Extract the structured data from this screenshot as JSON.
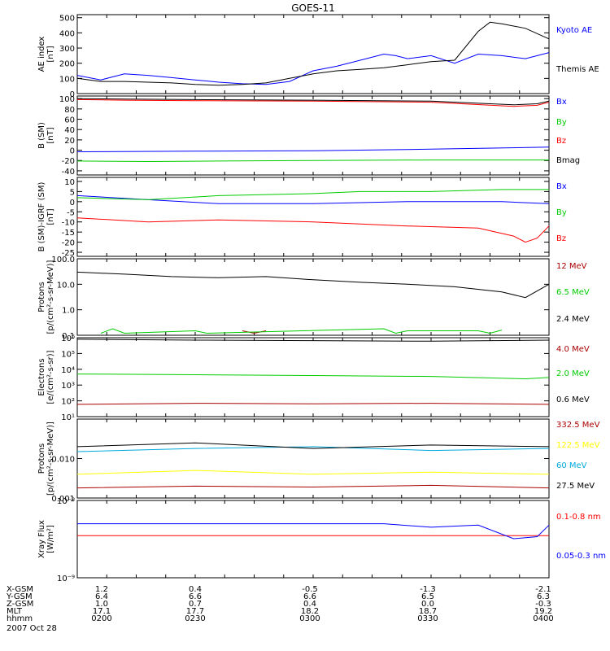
{
  "title": "GOES-11",
  "date_label": "2007 Oct 28",
  "chart_data": [
    {
      "type": "line",
      "ylabel": [
        "AE index",
        "[nT]"
      ],
      "ylim": [
        0,
        520
      ],
      "yscale": "linear",
      "yticks": [
        {
          "v": 500,
          "label": "500"
        },
        {
          "v": 400,
          "label": "400"
        },
        {
          "v": 300,
          "label": "300"
        },
        {
          "v": 200,
          "label": "200"
        },
        {
          "v": 100,
          "label": "100"
        },
        {
          "v": 0,
          "label": "0"
        }
      ],
      "series": [
        {
          "name": "Kyoto AE",
          "color": "#0000ff",
          "x": [
            0,
            0.1,
            0.2,
            0.3,
            0.4,
            0.5,
            0.6,
            0.7,
            0.8,
            0.9,
            1.0,
            1.1,
            1.2,
            1.3,
            1.35,
            1.4,
            1.5,
            1.6,
            1.7,
            1.8,
            1.9,
            2.0
          ],
          "y": [
            120,
            90,
            130,
            120,
            105,
            90,
            75,
            65,
            60,
            80,
            150,
            180,
            220,
            260,
            250,
            230,
            250,
            200,
            260,
            250,
            230,
            270
          ]
        },
        {
          "name": "Themis AE",
          "color": "#000000",
          "x": [
            0,
            0.1,
            0.2,
            0.3,
            0.4,
            0.5,
            0.6,
            0.7,
            0.8,
            0.9,
            1.0,
            1.1,
            1.2,
            1.3,
            1.4,
            1.5,
            1.6,
            1.7,
            1.75,
            1.8,
            1.9,
            2.0
          ],
          "y": [
            100,
            80,
            80,
            75,
            70,
            60,
            55,
            60,
            70,
            100,
            130,
            150,
            160,
            170,
            190,
            210,
            220,
            410,
            470,
            460,
            430,
            360
          ]
        }
      ]
    },
    {
      "type": "line",
      "ylabel": [
        "B (SM)",
        "[nT]"
      ],
      "ylim": [
        -48,
        105
      ],
      "yscale": "linear",
      "yticks": [
        {
          "v": 100,
          "label": "100"
        },
        {
          "v": 80,
          "label": "80"
        },
        {
          "v": 60,
          "label": "60"
        },
        {
          "v": 40,
          "label": "40"
        },
        {
          "v": 20,
          "label": "20"
        },
        {
          "v": 0,
          "label": "0"
        },
        {
          "v": -20,
          "label": "-20"
        },
        {
          "v": -40,
          "label": "-40"
        }
      ],
      "series": [
        {
          "name": "Bx",
          "color": "#0000ff",
          "x": [
            0,
            0.5,
            1.0,
            1.5,
            2.0
          ],
          "y": [
            -3,
            -2,
            -1,
            2,
            6
          ]
        },
        {
          "name": "By",
          "color": "#00cc00",
          "x": [
            0,
            0.3,
            0.6,
            1.0,
            1.5,
            2.0
          ],
          "y": [
            -21,
            -22,
            -21,
            -20,
            -19,
            -19
          ]
        },
        {
          "name": "Bz",
          "color": "#ff0000",
          "x": [
            0,
            0.2,
            0.5,
            1.0,
            1.5,
            1.85,
            1.95,
            2.0
          ],
          "y": [
            98,
            97,
            96,
            95,
            93,
            85,
            87,
            93
          ]
        },
        {
          "name": "Bmag",
          "color": "#000000",
          "x": [
            0,
            0.2,
            0.5,
            1.0,
            1.5,
            1.85,
            1.95,
            2.0
          ],
          "y": [
            100,
            99,
            98,
            97,
            95,
            88,
            90,
            95
          ]
        }
      ]
    },
    {
      "type": "line",
      "ylabel": [
        "B (SM)-IGRF (SM)",
        "[nT]"
      ],
      "ylim": [
        -27,
        12
      ],
      "yscale": "linear",
      "yticks": [
        {
          "v": 10,
          "label": "10"
        },
        {
          "v": 5,
          "label": "5"
        },
        {
          "v": 0,
          "label": "0"
        },
        {
          "v": -5,
          "label": "-5"
        },
        {
          "v": -10,
          "label": "-10"
        },
        {
          "v": -15,
          "label": "-15"
        },
        {
          "v": -20,
          "label": "-20"
        },
        {
          "v": -25,
          "label": "-25"
        }
      ],
      "series": [
        {
          "name": "Bx",
          "color": "#0000ff",
          "x": [
            0,
            0.3,
            0.6,
            1.0,
            1.4,
            1.8,
            2.0
          ],
          "y": [
            3,
            1,
            -1,
            -1,
            0,
            0,
            -1
          ]
        },
        {
          "name": "By",
          "color": "#00cc00",
          "x": [
            0,
            0.3,
            0.6,
            1.0,
            1.2,
            1.5,
            1.8,
            2.0
          ],
          "y": [
            2,
            1,
            3,
            4,
            5,
            5,
            6,
            6
          ]
        },
        {
          "name": "Bz",
          "color": "#ff0000",
          "x": [
            0,
            0.3,
            0.6,
            1.0,
            1.4,
            1.7,
            1.85,
            1.9,
            1.95,
            2.0
          ],
          "y": [
            -8,
            -10,
            -9,
            -10,
            -12,
            -13,
            -17,
            -20,
            -18,
            -12
          ]
        }
      ]
    },
    {
      "type": "line",
      "ylabel": [
        "Protons",
        "[p/(cm²-s-sr-MeV)]"
      ],
      "ylim": [
        0.1,
        100
      ],
      "yscale": "log",
      "yticks": [
        {
          "v": 100,
          "label": "100.0"
        },
        {
          "v": 10,
          "label": "10.0"
        },
        {
          "v": 1,
          "label": "1.0"
        },
        {
          "v": 0.1,
          "label": "0.1"
        }
      ],
      "series": [
        {
          "name": "12 MeV",
          "color": "#aa0000",
          "x": [
            0.7,
            0.75,
            0.8
          ],
          "y": [
            0.15,
            0.12,
            0.15
          ]
        },
        {
          "name": "6.5 MeV",
          "color": "#00cc00",
          "x": [
            0.1,
            0.15,
            0.2,
            0.5,
            0.55,
            1.3,
            1.35,
            1.4,
            1.7,
            1.75,
            1.8
          ],
          "y": [
            0.12,
            0.18,
            0.12,
            0.15,
            0.12,
            0.18,
            0.12,
            0.15,
            0.15,
            0.12,
            0.16
          ]
        },
        {
          "name": "2.4 MeV",
          "color": "#000000",
          "x": [
            0,
            0.2,
            0.4,
            0.6,
            0.8,
            1.0,
            1.2,
            1.4,
            1.6,
            1.8,
            1.9,
            2.0
          ],
          "y": [
            30,
            25,
            20,
            18,
            20,
            15,
            12,
            10,
            8,
            5,
            3,
            10
          ]
        }
      ]
    },
    {
      "type": "line",
      "ylabel": [
        "Electrons",
        "[e/(cm²-s-sr)]"
      ],
      "ylim": [
        10,
        1000000
      ],
      "yscale": "log",
      "yticks": [
        {
          "v": 1000000,
          "label": "10⁶"
        },
        {
          "v": 100000,
          "label": "10⁵"
        },
        {
          "v": 10000,
          "label": "10⁴"
        },
        {
          "v": 1000,
          "label": "10³"
        },
        {
          "v": 100,
          "label": "10²"
        },
        {
          "v": 10,
          "label": "10¹"
        }
      ],
      "series": [
        {
          "name": "4.0 MeV",
          "color": "#aa0000",
          "x": [
            0,
            0.5,
            1.0,
            1.5,
            2.0
          ],
          "y": [
            60,
            70,
            65,
            70,
            60
          ]
        },
        {
          "name": "2.0 MeV",
          "color": "#00cc00",
          "x": [
            0,
            0.5,
            1.0,
            1.5,
            1.9,
            2.0
          ],
          "y": [
            5000,
            4500,
            4000,
            3500,
            2500,
            3000
          ]
        },
        {
          "name": "0.6 MeV",
          "color": "#000000",
          "x": [
            0,
            0.5,
            1.0,
            1.5,
            2.0
          ],
          "y": [
            800000,
            700000,
            650000,
            600000,
            700000
          ]
        }
      ]
    },
    {
      "type": "line",
      "ylabel": [
        "Protons",
        "[p/(cm²-s-sr-MeV)]"
      ],
      "ylim": [
        0.001,
        0.1
      ],
      "yscale": "log",
      "yticks": [
        {
          "v": 0.01,
          "label": "0.010"
        },
        {
          "v": 0.001,
          "label": "0.001"
        }
      ],
      "series": [
        {
          "name": "332.5 MeV",
          "color": "#aa0000",
          "x": [
            0,
            0.5,
            1.0,
            1.5,
            2.0
          ],
          "y": [
            0.0018,
            0.002,
            0.0019,
            0.0021,
            0.0018
          ]
        },
        {
          "name": "122.5 MeV",
          "color": "#ffff00",
          "x": [
            0,
            0.5,
            1.0,
            1.5,
            2.0
          ],
          "y": [
            0.004,
            0.005,
            0.004,
            0.0045,
            0.004
          ]
        },
        {
          "name": "60 MeV",
          "color": "#00aadd",
          "x": [
            0,
            0.5,
            1.0,
            1.5,
            2.0
          ],
          "y": [
            0.015,
            0.018,
            0.02,
            0.016,
            0.018
          ]
        },
        {
          "name": "27.5 MeV",
          "color": "#000000",
          "x": [
            0,
            0.5,
            1.0,
            1.5,
            2.0
          ],
          "y": [
            0.02,
            0.025,
            0.018,
            0.022,
            0.02
          ]
        }
      ]
    },
    {
      "type": "line",
      "ylabel": [
        "Xray Flux",
        "[W/m²]"
      ],
      "ylim": [
        1e-09,
        1e-08
      ],
      "yscale": "log",
      "yticks": [
        {
          "v": 1e-08,
          "label": "10⁻⁸"
        },
        {
          "v": 1e-09,
          "label": "10⁻⁹"
        }
      ],
      "series": [
        {
          "name": "0.1-0.8 nm",
          "color": "#ff0000",
          "x": [
            0,
            2.0
          ],
          "y": [
            3.5e-09,
            3.5e-09
          ]
        },
        {
          "name": "0.05-0.3 nm",
          "color": "#0000ff",
          "x": [
            0,
            1.3,
            1.5,
            1.7,
            1.85,
            1.95,
            2.0
          ],
          "y": [
            5e-09,
            5e-09,
            4.5e-09,
            4.8e-09,
            3.2e-09,
            3.4e-09,
            4.8e-09
          ]
        }
      ]
    }
  ],
  "ephemeris": {
    "labels": [
      "X-GSM",
      "Y-GSM",
      "Z-GSM",
      "MLT",
      "hhmm"
    ],
    "columns": [
      [
        "1.2",
        "6.4",
        "1.0",
        "17.1",
        "0200"
      ],
      [
        "0.4",
        "6.6",
        "0.7",
        "17.7",
        "0230"
      ],
      [
        "-0.5",
        "6.6",
        "0.4",
        "18.2",
        "0300"
      ],
      [
        "-1.3",
        "6.5",
        "0.0",
        "18.7",
        "0330"
      ],
      [
        "-2.1",
        "6.3",
        "-0.3",
        "19.2",
        "0400"
      ]
    ]
  },
  "colors": {
    "blue": "#0000ff",
    "green": "#00cc00",
    "red": "#ff0000",
    "darkred": "#aa0000",
    "yellow": "#ffff00",
    "cyan": "#00aadd",
    "black": "#000000"
  }
}
